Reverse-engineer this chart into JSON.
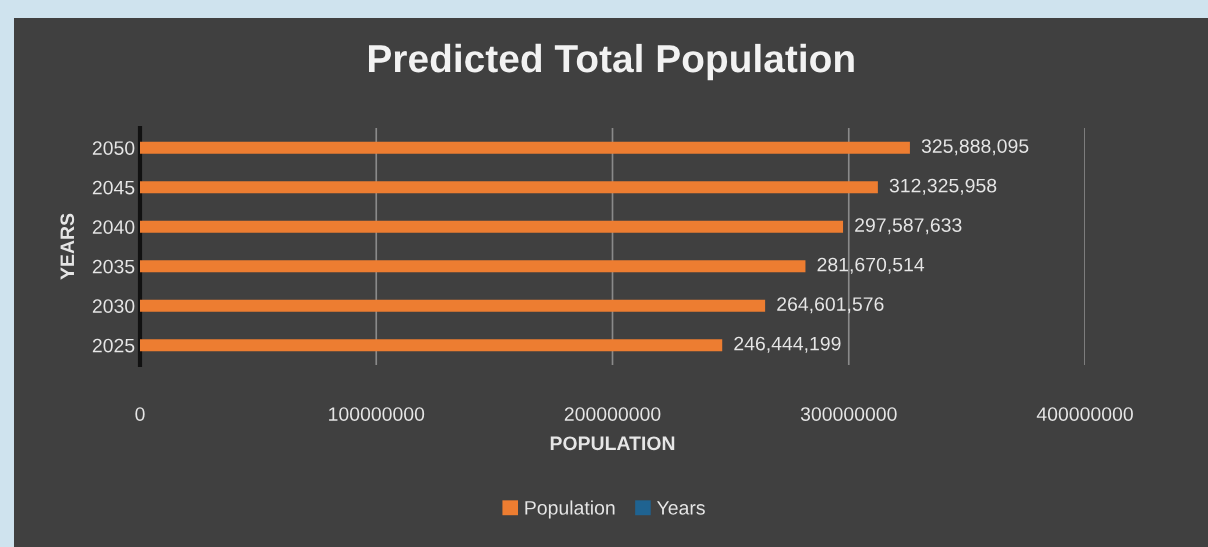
{
  "chart_data": {
    "type": "bar",
    "orientation": "horizontal",
    "title": "Predicted Total Population",
    "xlabel": "POPULATION",
    "ylabel": "YEARS",
    "categories": [
      "2050",
      "2045",
      "2040",
      "2035",
      "2030",
      "2025"
    ],
    "series": [
      {
        "name": "Population",
        "color": "#ed7d31",
        "values": [
          325888095,
          312325958,
          297587633,
          281670514,
          264601576,
          246444199
        ],
        "value_labels": [
          "325,888,095",
          "312,325,958",
          "297,587,633",
          "281,670,514",
          "264,601,576",
          "246,444,199"
        ]
      },
      {
        "name": "Years",
        "color": "#1f6391",
        "values": [
          null,
          null,
          null,
          null,
          null,
          null
        ]
      }
    ],
    "xlim": [
      0,
      400000000
    ],
    "xticks": [
      0,
      100000000,
      200000000,
      300000000,
      400000000
    ],
    "grid": "x",
    "legend": "bottom"
  }
}
